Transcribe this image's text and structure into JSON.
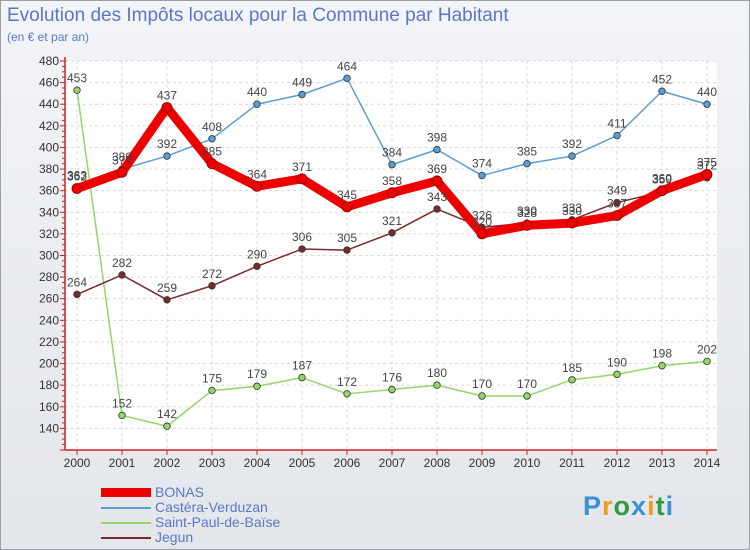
{
  "title": "Evolution des Impôts locaux pour la Commune par Habitant",
  "subtitle": "(en € et par an)",
  "logo": {
    "letters": [
      "P",
      "r",
      "o",
      "x",
      "i",
      "t",
      "i"
    ],
    "colors": [
      "#3a8fd6",
      "#f19a1e",
      "#2f9a3f",
      "#3a8fd6",
      "#f19a1e",
      "#2f9a3f",
      "#3a8fd6"
    ]
  },
  "chart_data": {
    "type": "line",
    "title": "Evolution des Impôts locaux pour la Commune par Habitant",
    "subtitle": "(en € et par an)",
    "xlabel": "",
    "ylabel": "",
    "x": [
      "2000",
      "2001",
      "2002",
      "2003",
      "2004",
      "2005",
      "2006",
      "2007",
      "2008",
      "2009",
      "2010",
      "2011",
      "2012",
      "2013",
      "2014"
    ],
    "ylim": [
      120,
      480
    ],
    "yticks": [
      140,
      160,
      180,
      200,
      220,
      240,
      260,
      280,
      300,
      320,
      340,
      360,
      380,
      400,
      420,
      440,
      460,
      480
    ],
    "grid": true,
    "legend_position": "bottom-left",
    "series": [
      {
        "name": "Castéra-Verduzan",
        "color": "#5a9fd4",
        "values": [
          363,
          380,
          392,
          408,
          440,
          449,
          464,
          384,
          398,
          374,
          385,
          392,
          411,
          452,
          440
        ],
        "labels": [
          "363",
          "380",
          "392",
          "408",
          "440",
          "449",
          "464",
          "384",
          "398",
          "374",
          "385",
          "392",
          "411",
          "452",
          "440"
        ]
      },
      {
        "name": "Saint-Paul-de-Baïse",
        "color": "#94d66a",
        "values": [
          453,
          152,
          142,
          175,
          179,
          187,
          172,
          176,
          180,
          170,
          170,
          185,
          190,
          198,
          202
        ],
        "labels": [
          "453",
          "152",
          "142",
          "175",
          "179",
          "187",
          "172",
          "176",
          "180",
          "170",
          "170",
          "185",
          "190",
          "198",
          "202"
        ]
      },
      {
        "name": "Jegun",
        "color": "#7a2a2a",
        "values": [
          264,
          282,
          259,
          272,
          290,
          306,
          305,
          321,
          343,
          326,
          330,
          333,
          349,
          359,
          372
        ],
        "labels": [
          "264",
          "282",
          "259",
          "272",
          "290",
          "306",
          "305",
          "321",
          "343",
          "326",
          "330",
          "333",
          "349",
          "359",
          "372"
        ]
      },
      {
        "name": "BONAS",
        "color": "#ee0000",
        "values": [
          362,
          377,
          437,
          385,
          364,
          371,
          345,
          358,
          369,
          320,
          328,
          330,
          337,
          360,
          375
        ],
        "labels": [
          "362",
          "377",
          "437",
          "385",
          "364",
          "371",
          "345",
          "358",
          "369",
          "320",
          "328",
          "330",
          "337",
          "360",
          "375"
        ]
      }
    ],
    "legend": [
      {
        "name": "BONAS",
        "color": "#ee0000"
      },
      {
        "name": "Castéra-Verduzan",
        "color": "#5a9fd4"
      },
      {
        "name": "Saint-Paul-de-Baïse",
        "color": "#94d66a"
      },
      {
        "name": "Jegun",
        "color": "#7a2a2a"
      }
    ]
  }
}
